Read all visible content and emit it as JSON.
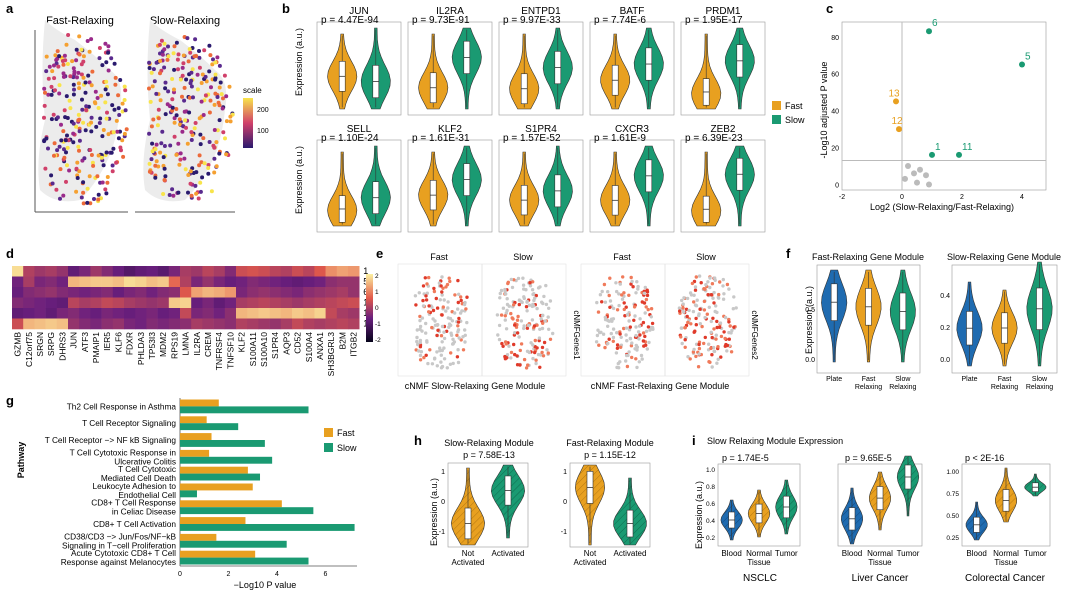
{
  "colors": {
    "fast": "#E8A020",
    "slow": "#1A9A72",
    "blue": "#1F6BB0",
    "grey": "#BBBBBB"
  },
  "panel_labels": [
    "a",
    "b",
    "c",
    "d",
    "e",
    "f",
    "g",
    "h",
    "i"
  ],
  "panel_a": {
    "titles": [
      "Fast-Relaxing",
      "Slow-Relaxing"
    ],
    "scale_title": "scale",
    "scale_ticks": [
      "200",
      "100"
    ]
  },
  "panel_b": {
    "ylabel": "Expression (a.u.)",
    "legend": [
      "Fast",
      "Slow"
    ],
    "genes": [
      {
        "name": "JUN",
        "p": "p = 4.47E-94"
      },
      {
        "name": "IL2RA",
        "p": "p = 9.73E-91"
      },
      {
        "name": "ENTPD1",
        "p": "p = 9.97E-33"
      },
      {
        "name": "BATF",
        "p": "p = 7.74E-6"
      },
      {
        "name": "PRDM1",
        "p": "p = 1.95E-17"
      },
      {
        "name": "SELL",
        "p": "p = 1.10E-24"
      },
      {
        "name": "KLF2",
        "p": "p = 1.61E-31"
      },
      {
        "name": "S1PR4",
        "p": "p = 1.57E-52"
      },
      {
        "name": "CXCR3",
        "p": "p = 1.61E-9"
      },
      {
        "name": "ZEB2",
        "p": "p = 6.39E-23"
      }
    ]
  },
  "chart_data": [
    {
      "panel": "c",
      "type": "scatter",
      "xlabel": "Log2 (Slow-Relaxing/Fast-Relaxing)",
      "ylabel": "-Log10 adjusted P value",
      "xlim": [
        -2,
        4.8
      ],
      "ylim": [
        -3,
        88
      ],
      "xticks": [
        "-2",
        "0",
        "2",
        "4"
      ],
      "yticks": [
        "0",
        "20",
        "40",
        "60",
        "80"
      ],
      "points": [
        {
          "label": "6",
          "x": 0.9,
          "y": 83,
          "group": "slow"
        },
        {
          "label": "5",
          "x": 4.0,
          "y": 65,
          "group": "slow"
        },
        {
          "label": "13",
          "x": -0.2,
          "y": 45,
          "group": "fast"
        },
        {
          "label": "12",
          "x": -0.1,
          "y": 30,
          "group": "fast"
        },
        {
          "label": "1",
          "x": 1.0,
          "y": 16,
          "group": "slow"
        },
        {
          "label": "11",
          "x": 1.9,
          "y": 16,
          "group": "slow"
        },
        {
          "label": "",
          "x": 0.2,
          "y": 10,
          "group": "ns"
        },
        {
          "label": "",
          "x": 0.6,
          "y": 8,
          "group": "ns"
        },
        {
          "label": "",
          "x": 0.4,
          "y": 6,
          "group": "ns"
        },
        {
          "label": "",
          "x": 0.8,
          "y": 5,
          "group": "ns"
        },
        {
          "label": "",
          "x": 0.1,
          "y": 3,
          "group": "ns"
        },
        {
          "label": "",
          "x": 0.5,
          "y": 1,
          "group": "ns"
        },
        {
          "label": "",
          "x": 0.9,
          "y": 0,
          "group": "ns"
        }
      ]
    },
    {
      "panel": "g",
      "type": "bar",
      "ylabel": "Pathway",
      "xlabel": "−Log10 P value",
      "xlim": [
        0,
        7.3
      ],
      "xticks": [
        "0",
        "2",
        "4",
        "6"
      ],
      "legend": [
        "Fast",
        "Slow"
      ],
      "categories": [
        "Th2 Cell Response in Asthma",
        "T Cell Receptor Signaling",
        "T Cell Receptor −> NF kB Signaling",
        "T Cell Cytotoxic Response in|Ulcerative Colitis",
        "T Cell Cytotoxic|Mediated Cell Death",
        "Leukocyte Adhesion to|Endothelial Cell",
        "CD8+ T Cell Response|in Celiac Disease",
        "CD8+ T Cell Activation",
        "CD38/CD3 −> Jun/Fos/NF−kB|Signaling in T−cell Proliferation",
        "Acute Cytotoxic CD8+ T Cell|Response against Melanocytes"
      ],
      "series": [
        {
          "name": "Fast",
          "values": [
            1.6,
            1.1,
            1.3,
            1.2,
            2.8,
            3.0,
            4.2,
            2.7,
            1.5,
            3.1
          ]
        },
        {
          "name": "Slow",
          "values": [
            5.3,
            2.4,
            3.5,
            3.8,
            3.3,
            0.7,
            5.5,
            7.2,
            4.4,
            5.3
          ]
        }
      ]
    }
  ],
  "panel_d": {
    "row_labels": [
      "1",
      "5",
      "6",
      "11",
      "12",
      "13"
    ],
    "col_labels": [
      "GZMB",
      "C12orf75",
      "SRGN",
      "SRPG",
      "DHRS3",
      "JUN",
      "ATF3",
      "PMAIP1",
      "IER5",
      "KLF6",
      "FDXR",
      "PHLDA3",
      "TP53I3",
      "MDM2",
      "RPS19",
      "LMNA",
      "IL2RA",
      "CREM",
      "TNFRSF4",
      "TNFSF10",
      "KLF2",
      "S100A11",
      "S100A10",
      "S1PR4",
      "AQP3",
      "CD52",
      "S100A4",
      "ANXA1",
      "SH3BGRL3",
      "B2M",
      "ITGB2"
    ],
    "scale_ticks": [
      "2",
      "1",
      "0",
      "-1",
      "-2"
    ],
    "matrix": [
      [
        2.2,
        0.3,
        0.1,
        0.2,
        0.0,
        -0.6,
        -0.3,
        0.1,
        -0.2,
        -0.5,
        -0.8,
        -0.6,
        -0.5,
        -0.7,
        -0.3,
        0.2,
        0.1,
        0.4,
        0.2,
        -0.2,
        0.6,
        0.7,
        0.6,
        0.4,
        0.3,
        0.6,
        0.4,
        0.8,
        1.4,
        1.6,
        1.5
      ],
      [
        -0.4,
        0.2,
        -0.3,
        -0.2,
        -0.4,
        1.8,
        1.9,
        2.0,
        2.0,
        1.9,
        2.2,
        2.1,
        1.9,
        2.0,
        1.0,
        0.3,
        -0.3,
        0.0,
        -0.3,
        -0.5,
        -0.4,
        -0.2,
        -0.3,
        -0.4,
        -0.5,
        -0.6,
        -0.5,
        -0.4,
        -0.1,
        0.0,
        0.0
      ],
      [
        -0.5,
        -0.2,
        -0.1,
        0.0,
        -0.2,
        -0.3,
        -0.4,
        -0.3,
        -0.2,
        -0.5,
        -0.3,
        -0.2,
        -0.4,
        -0.2,
        -0.1,
        0.8,
        1.6,
        1.8,
        1.7,
        1.5,
        -0.3,
        -0.1,
        0.0,
        -0.1,
        -0.2,
        -0.3,
        -0.1,
        0.0,
        0.1,
        0.2,
        0.0
      ],
      [
        -0.2,
        -0.3,
        -0.4,
        -0.5,
        -0.6,
        0.4,
        0.2,
        0.3,
        0.5,
        0.4,
        0.2,
        0.1,
        0.0,
        0.1,
        2.0,
        2.1,
        -0.5,
        -0.3,
        -0.6,
        -0.4,
        0.2,
        0.3,
        0.4,
        0.3,
        0.2,
        0.1,
        0.2,
        0.3,
        0.4,
        0.5,
        0.6
      ],
      [
        -0.6,
        -0.5,
        -0.4,
        -0.6,
        -0.3,
        -0.2,
        -0.4,
        -0.5,
        -0.3,
        -0.4,
        -0.5,
        -0.4,
        -0.3,
        -0.5,
        -0.4,
        0.5,
        -0.3,
        -0.2,
        -0.4,
        -0.1,
        1.8,
        1.9,
        2.0,
        1.9,
        1.8,
        2.0,
        1.9,
        2.1,
        0.5,
        0.2,
        0.1
      ],
      [
        0.6,
        1.8,
        1.9,
        2.0,
        1.9,
        0.0,
        -0.2,
        -0.3,
        -0.1,
        0.0,
        -0.3,
        -0.4,
        -0.2,
        -0.3,
        -0.2,
        -0.1,
        0.2,
        0.1,
        0.0,
        -0.1,
        0.3,
        0.2,
        0.1,
        0.0,
        0.2,
        0.5,
        0.3,
        0.2,
        0.3,
        0.4,
        0.3
      ]
    ]
  },
  "panel_e": {
    "titles": [
      "Fast",
      "Slow",
      "Fast",
      "Slow"
    ],
    "side_labels": [
      "cNMFGenes1",
      "cNMFGenes2"
    ],
    "captions": [
      "cNMF Slow-Relaxing Gene Module",
      "cNMF Fast-Relaxing Gene Module"
    ]
  },
  "panel_f": {
    "titles": [
      "Fast-Relaxing Gene Module",
      "Slow-Relaxing Gene Module"
    ],
    "ylabel": "Expression (a.u.)",
    "groups": [
      "Plate",
      "Fast|Relaxing",
      "Slow|Relaxing"
    ],
    "yticks_left": [
      "0.0",
      "0.5"
    ],
    "yticks_right": [
      "0.0",
      "0.2",
      "0.4"
    ]
  },
  "panel_h": {
    "titles": [
      "Slow-Relaxing Module",
      "Fast-Relaxing Module"
    ],
    "pvals": [
      "p = 7.58E-13",
      "p = 1.15E-12"
    ],
    "ylabel": "Expression (a.u.)",
    "groups": [
      "Not|Activated",
      "Activated"
    ],
    "yticks": [
      "1",
      "0",
      "-1"
    ]
  },
  "panel_i": {
    "title": "Slow Relaxing Module Expression",
    "pvals": [
      "p = 1.74E-5",
      "p = 9.65E-5",
      "p < 2E-16"
    ],
    "ylabel": "Expression (a.u.)",
    "groups": [
      "Blood",
      "Normal|Tissue",
      "Tumor"
    ],
    "captions": [
      "NSCLC",
      "Liver Cancer",
      "Colorectal Cancer"
    ],
    "yticks_left": [
      "0.2",
      "0.4",
      "0.6",
      "0.8",
      "1.0"
    ],
    "yticks_right": [
      "0.25",
      "0.50",
      "0.75",
      "1.00"
    ]
  }
}
